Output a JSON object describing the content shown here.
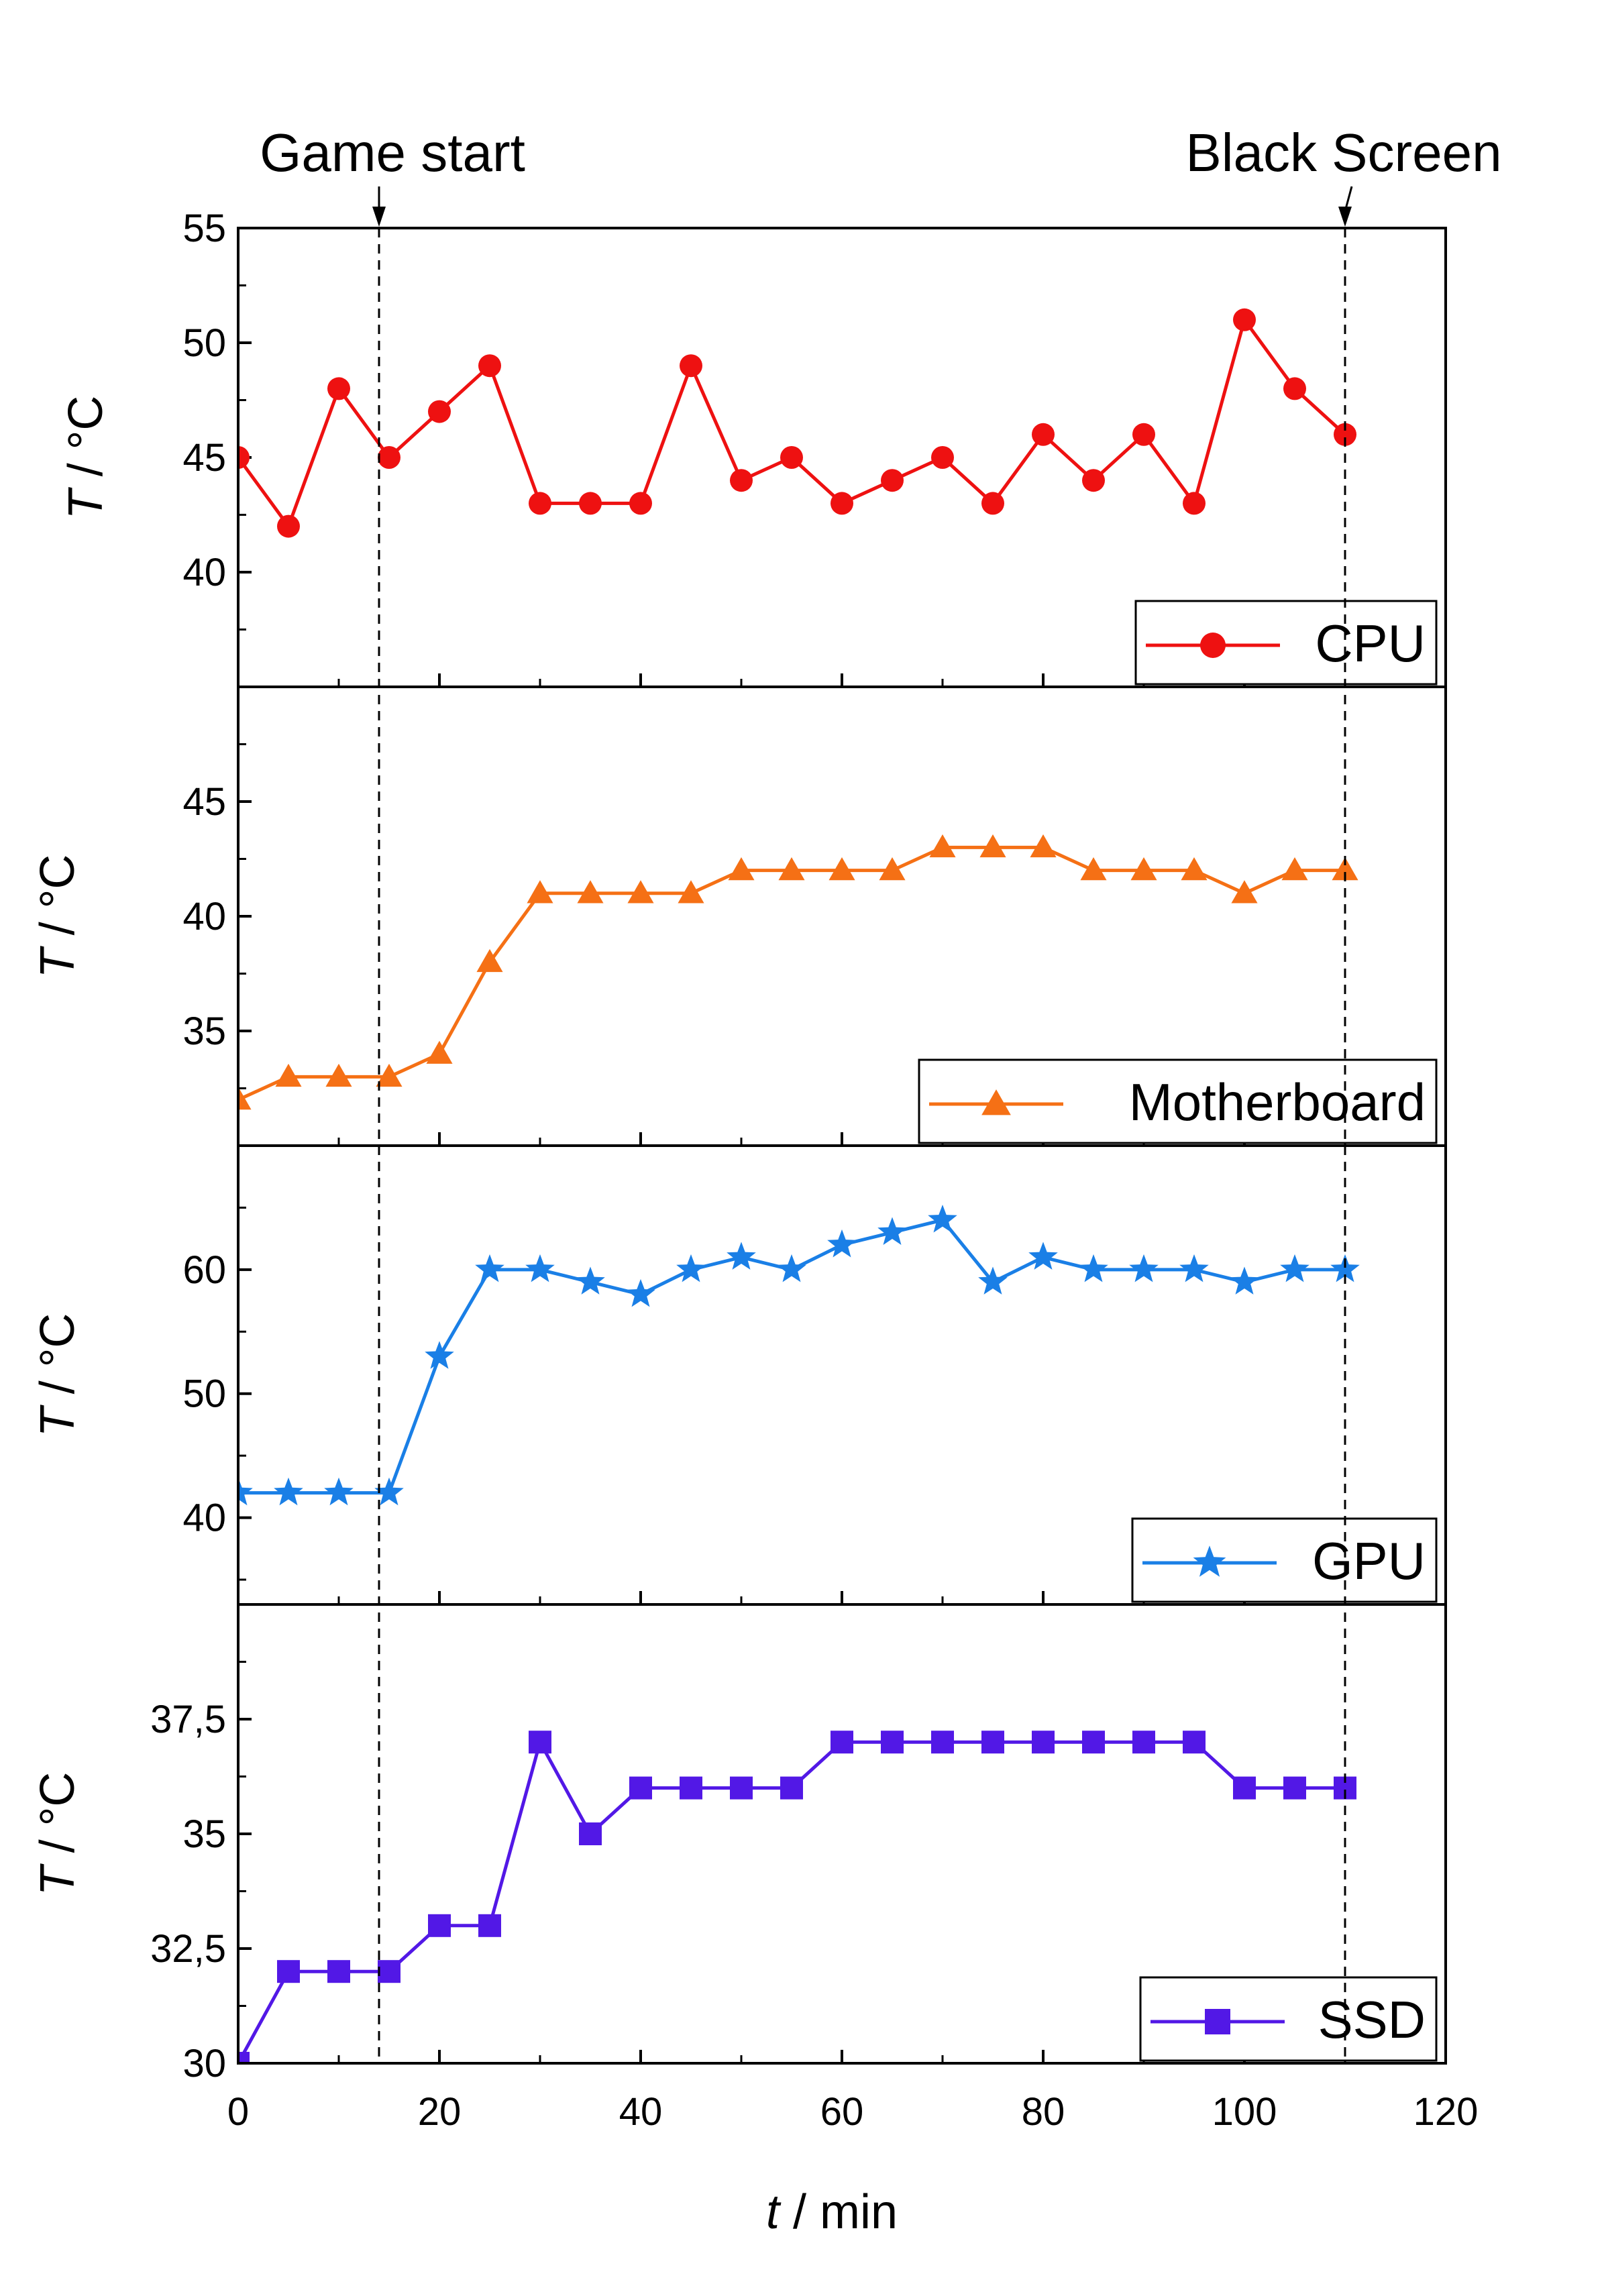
{
  "chart_data": {
    "type": "line",
    "layout": "stacked panels with shared x axis",
    "x": [
      0,
      5,
      10,
      15,
      20,
      25,
      30,
      35,
      40,
      45,
      50,
      55,
      60,
      65,
      70,
      75,
      80,
      85,
      90,
      95,
      100,
      105,
      110
    ],
    "xlim": [
      0,
      120
    ],
    "xticks": [
      0,
      20,
      40,
      60,
      80,
      100,
      120
    ],
    "xlabel_italic": "t",
    "xlabel_rest": " / min",
    "ylabel_italic": "T",
    "ylabel_rest": " / °C",
    "annotations": [
      {
        "label": "Game start",
        "x": 14
      },
      {
        "label": "Black Screen",
        "x": 110
      }
    ],
    "panels": [
      {
        "name": "CPU",
        "color": "#ee1111",
        "marker": "circle",
        "ylim": [
          35,
          55
        ],
        "yticks": [
          40,
          45,
          50,
          55
        ],
        "ytick_labels": [
          "40",
          "45",
          "50",
          "55"
        ],
        "legend_position": "bottom-right",
        "values": [
          45,
          42,
          48,
          45,
          47,
          49,
          43,
          43,
          43,
          49,
          44,
          45,
          43,
          44,
          45,
          43,
          46,
          44,
          46,
          43,
          51,
          48,
          46
        ]
      },
      {
        "name": "Motherboard",
        "color": "#f57015",
        "marker": "triangle",
        "ylim": [
          30,
          50
        ],
        "yticks": [
          35,
          40,
          45
        ],
        "ytick_labels": [
          "35",
          "40",
          "45"
        ],
        "legend_position": "bottom-right",
        "values": [
          32,
          33,
          33,
          33,
          34,
          38,
          41,
          41,
          41,
          41,
          42,
          42,
          42,
          42,
          43,
          43,
          43,
          42,
          42,
          42,
          41,
          42,
          42
        ]
      },
      {
        "name": "GPU",
        "color": "#1a7fe6",
        "marker": "star",
        "ylim": [
          33,
          70
        ],
        "yticks": [
          40,
          50,
          60
        ],
        "ytick_labels": [
          "40",
          "50",
          "60"
        ],
        "legend_position": "bottom-right",
        "values": [
          42,
          42,
          42,
          42,
          53,
          60,
          60,
          59,
          58,
          60,
          61,
          60,
          62,
          63,
          64,
          59,
          61,
          60,
          60,
          60,
          59,
          60,
          60
        ]
      },
      {
        "name": "SSD",
        "color": "#5218e6",
        "marker": "square",
        "ylim": [
          30,
          40
        ],
        "yticks": [
          30,
          32.5,
          35,
          37.5
        ],
        "ytick_labels": [
          "30",
          "32,5",
          "35",
          "37,5"
        ],
        "legend_position": "bottom-right",
        "values": [
          30,
          32,
          32,
          32,
          33,
          33,
          37,
          35,
          36,
          36,
          36,
          36,
          37,
          37,
          37,
          37,
          37,
          37,
          37,
          37,
          36,
          36,
          36
        ]
      }
    ]
  }
}
